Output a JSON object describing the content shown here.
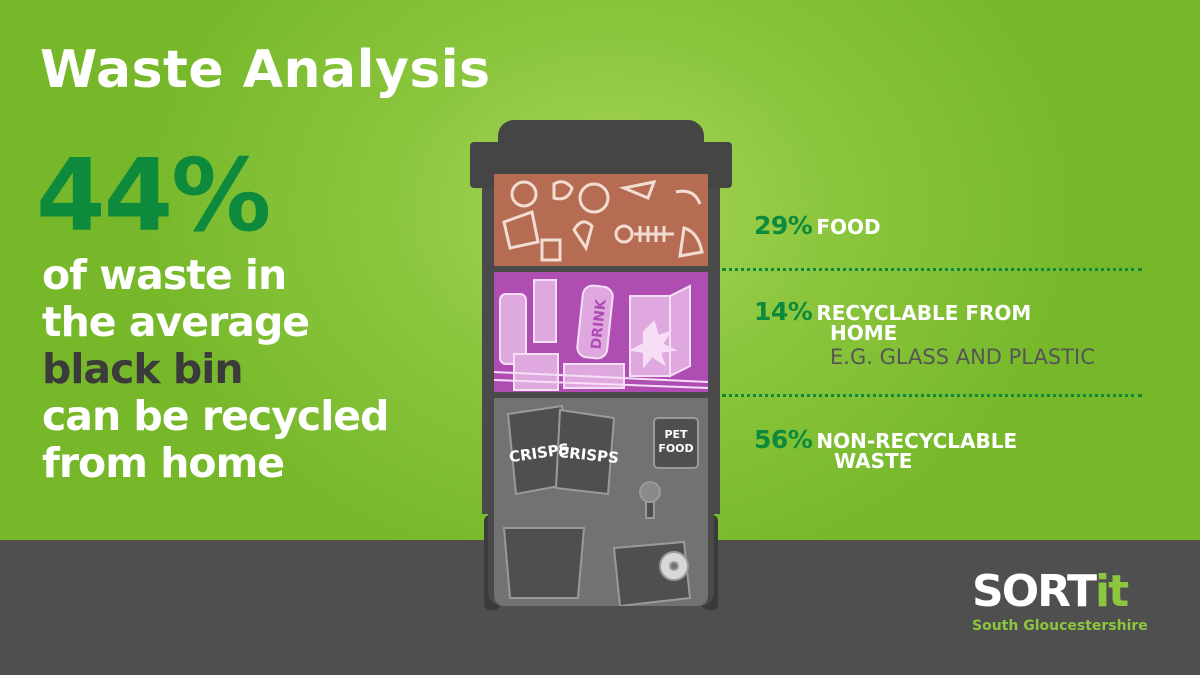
{
  "title": "Waste Analysis",
  "headline": {
    "percent": "44%",
    "line1": "of waste in",
    "line2": "the average",
    "line3": "black bin",
    "line4": "can be recycled",
    "line5": "from home"
  },
  "segments": [
    {
      "percent": "29%",
      "label": "FOOD",
      "sub": ""
    },
    {
      "percent": "14%",
      "label": "RECYCLABLE FROM",
      "label2": "HOME",
      "sub": "E.G. GLASS AND PLASTIC"
    },
    {
      "percent": "56%",
      "label": "NON-RECYCLABLE",
      "label2": "WASTE",
      "sub": ""
    }
  ],
  "bin_items": {
    "drink": "DRINK",
    "crisps1": "CRISPS",
    "crisps2": "CRISPS",
    "pet_food_1": "PET",
    "pet_food_2": "FOOD"
  },
  "logo": {
    "main": "SORT",
    "accent": "it",
    "sub": "South Gloucestershire"
  },
  "colors": {
    "background_green": "#8cc63e",
    "accent_green": "#0d8a3c",
    "floor_grey": "#5e5e5e",
    "food_segment": "#b56c52",
    "recyclable_segment": "#b04db3",
    "non_recyclable_segment": "#727272"
  }
}
